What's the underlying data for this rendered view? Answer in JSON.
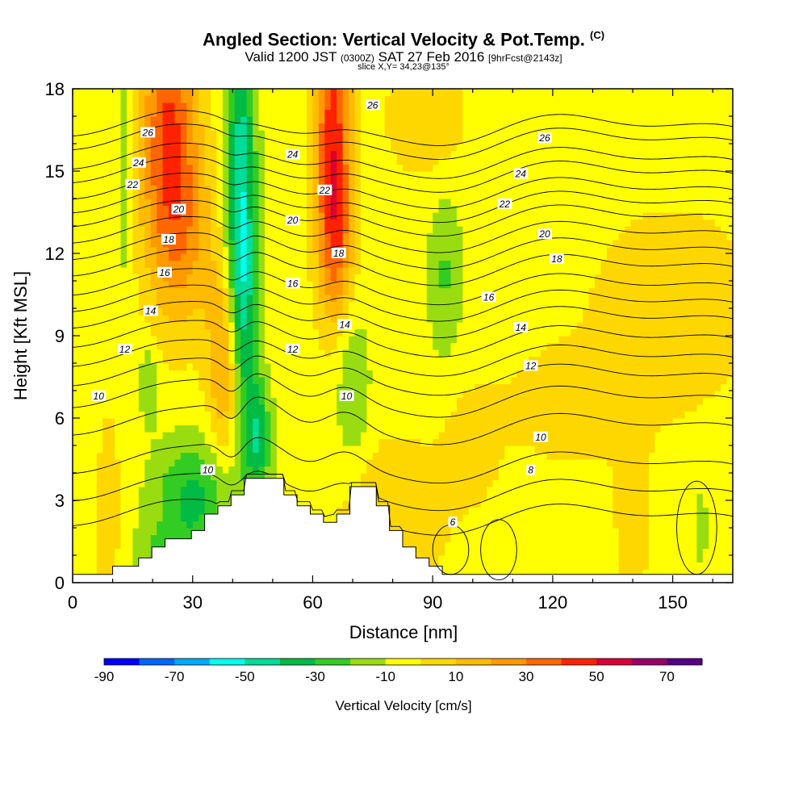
{
  "title": {
    "main": "Angled Section: Vertical Velocity & Pot.Temp.",
    "tag": "(C)",
    "line2_a": "Valid 1200 JST",
    "line2_b": "(0300Z)",
    "line2_c": "SAT 27 Feb 2016",
    "line2_d": "[9hrFcst@2143z]",
    "line3": "slice X,Y= 34,23@135°"
  },
  "chart_data": {
    "type": "heatmap",
    "xlabel": "Distance [nm]",
    "ylabel": "Height [Kft MSL]",
    "xlim": [
      0,
      165
    ],
    "ylim": [
      0,
      18
    ],
    "xticks": [
      0,
      30,
      60,
      90,
      120,
      150
    ],
    "yticks": [
      0,
      3,
      6,
      9,
      12,
      15,
      18
    ],
    "background_value": -5,
    "colorbar": {
      "label": "Vertical Velocity [cm/s]",
      "ticks": [
        -90,
        -70,
        -50,
        -30,
        -10,
        10,
        30,
        50,
        70
      ],
      "bounds": [
        -90,
        80
      ],
      "colors": [
        "#0000ff",
        "#0066ff",
        "#00aaff",
        "#00ffee",
        "#00dd99",
        "#00bb44",
        "#33cc22",
        "#99dd11",
        "#ffff00",
        "#ffd700",
        "#ffbb00",
        "#ff9900",
        "#ff6600",
        "#ff2200",
        "#dd0033",
        "#990066",
        "#550088"
      ]
    },
    "velocity_features": [
      {
        "x": 24,
        "y": 16.5,
        "sx": 5,
        "sy": 3.5,
        "value": 45
      },
      {
        "x": 28,
        "y": 12.5,
        "sx": 6,
        "sy": 2.5,
        "value": 20
      },
      {
        "x": 42,
        "y": 14,
        "sx": 2.6,
        "sy": 4.5,
        "value": -45
      },
      {
        "x": 43,
        "y": 9.5,
        "sx": 2.5,
        "sy": 2.5,
        "value": -18
      },
      {
        "x": 65,
        "y": 16.2,
        "sx": 3.2,
        "sy": 3.8,
        "value": 50
      },
      {
        "x": 66,
        "y": 12.5,
        "sx": 3,
        "sy": 2,
        "value": 20
      },
      {
        "x": 38,
        "y": 8,
        "sx": 3,
        "sy": 2.5,
        "value": 28
      },
      {
        "x": 30,
        "y": 3,
        "sx": 7,
        "sy": 1.6,
        "value": -28
      },
      {
        "x": 46,
        "y": 5.3,
        "sx": 2.5,
        "sy": 1.5,
        "value": -32
      },
      {
        "x": 19,
        "y": 7.3,
        "sx": 1.5,
        "sy": 1,
        "value": -16
      },
      {
        "x": 13,
        "y": 15,
        "sx": 1.4,
        "sy": 3,
        "value": -14
      },
      {
        "x": 70,
        "y": 7,
        "sx": 3,
        "sy": 2,
        "value": -16
      },
      {
        "x": 93,
        "y": 11.2,
        "sx": 3,
        "sy": 2,
        "value": -16
      },
      {
        "x": 157,
        "y": 2,
        "sx": 1.2,
        "sy": 1,
        "value": -12
      },
      {
        "x": 22,
        "y": 0.8,
        "sx": 5,
        "sy": 0.8,
        "value": -14
      },
      {
        "x": 9,
        "y": 2.5,
        "sx": 2,
        "sy": 2.5,
        "value": 14
      },
      {
        "x": 88,
        "y": 17,
        "sx": 7,
        "sy": 1.5,
        "value": 14
      },
      {
        "x": 80,
        "y": 2.5,
        "sx": 10,
        "sy": 2,
        "value": 14
      },
      {
        "x": 150,
        "y": 10,
        "sx": 14,
        "sy": 2.5,
        "value": 14
      },
      {
        "x": 125,
        "y": 6.5,
        "sx": 12,
        "sy": 1.5,
        "value": 12
      },
      {
        "x": 140,
        "y": 2.5,
        "sx": 3,
        "sy": 2,
        "value": 14
      },
      {
        "x": 100,
        "y": 5,
        "sx": 5,
        "sy": 1.5,
        "value": 10
      }
    ],
    "terrain": [
      {
        "x": 0,
        "h": 0.3
      },
      {
        "x": 10,
        "h": 0.3
      },
      {
        "x": 10,
        "h": 0.6
      },
      {
        "x": 16.5,
        "h": 0.6
      },
      {
        "x": 16.5,
        "h": 0.9
      },
      {
        "x": 19.8,
        "h": 0.9
      },
      {
        "x": 19.8,
        "h": 1.3
      },
      {
        "x": 23.1,
        "h": 1.3
      },
      {
        "x": 23.1,
        "h": 1.6
      },
      {
        "x": 29.7,
        "h": 1.6
      },
      {
        "x": 29.7,
        "h": 1.9
      },
      {
        "x": 33,
        "h": 1.9
      },
      {
        "x": 33,
        "h": 2.5
      },
      {
        "x": 36.3,
        "h": 2.5
      },
      {
        "x": 36.3,
        "h": 2.8
      },
      {
        "x": 39.6,
        "h": 2.8
      },
      {
        "x": 39.6,
        "h": 3.2
      },
      {
        "x": 42.9,
        "h": 3.2
      },
      {
        "x": 42.9,
        "h": 3.8
      },
      {
        "x": 52.8,
        "h": 3.8
      },
      {
        "x": 52.8,
        "h": 3.2
      },
      {
        "x": 56.1,
        "h": 3.2
      },
      {
        "x": 56.1,
        "h": 2.8
      },
      {
        "x": 59.4,
        "h": 2.8
      },
      {
        "x": 59.4,
        "h": 2.5
      },
      {
        "x": 62.7,
        "h": 2.5
      },
      {
        "x": 62.7,
        "h": 2.2
      },
      {
        "x": 66,
        "h": 2.2
      },
      {
        "x": 66,
        "h": 2.5
      },
      {
        "x": 69.3,
        "h": 2.5
      },
      {
        "x": 69.3,
        "h": 3.5
      },
      {
        "x": 75.9,
        "h": 3.5
      },
      {
        "x": 75.9,
        "h": 2.8
      },
      {
        "x": 79.2,
        "h": 2.8
      },
      {
        "x": 79.2,
        "h": 1.9
      },
      {
        "x": 82.5,
        "h": 1.9
      },
      {
        "x": 82.5,
        "h": 1.3
      },
      {
        "x": 85.8,
        "h": 1.3
      },
      {
        "x": 85.8,
        "h": 0.9
      },
      {
        "x": 89.1,
        "h": 0.9
      },
      {
        "x": 89.1,
        "h": 0.6
      },
      {
        "x": 92.4,
        "h": 0.6
      },
      {
        "x": 92.4,
        "h": 0.3
      },
      {
        "x": 165,
        "h": 0.3
      }
    ],
    "isentropes": [
      {
        "theta": 26,
        "h": 16.5,
        "bump": 0.3
      },
      {
        "theta": 25,
        "h": 16,
        "bump": 0.4
      },
      {
        "theta": 24,
        "h": 15.3,
        "bump": 0.5
      },
      {
        "theta": 23,
        "h": 14.8,
        "bump": 0.5
      },
      {
        "theta": 22,
        "h": 14.2,
        "bump": 0.6
      },
      {
        "theta": 21,
        "h": 13.7,
        "bump": 0.6
      },
      {
        "theta": 20,
        "h": 13.2,
        "bump": 0.7
      },
      {
        "theta": 19,
        "h": 12.6,
        "bump": 0.8
      },
      {
        "theta": 18,
        "h": 12,
        "bump": 0.9
      },
      {
        "theta": 17,
        "h": 11.4,
        "bump": 0.9
      },
      {
        "theta": 16,
        "h": 10.7,
        "bump": 0.9
      },
      {
        "theta": 15,
        "h": 10.1,
        "bump": 0.9
      },
      {
        "theta": 14,
        "h": 9.5,
        "bump": 0.9
      },
      {
        "theta": 13,
        "h": 8.8,
        "bump": 1.0
      },
      {
        "theta": 12,
        "h": 8.1,
        "bump": 1.0
      },
      {
        "theta": 11,
        "h": 7.4,
        "bump": 1.2
      },
      {
        "theta": 10,
        "h": 6.6,
        "bump": 1.4
      },
      {
        "theta": 9,
        "h": 5.6,
        "bump": 1.6
      },
      {
        "theta": 8,
        "h": 4.2,
        "bump": 1.5
      },
      {
        "theta": 7,
        "h": 3.2,
        "bump": 1.2
      },
      {
        "theta": 6,
        "h": 2.3,
        "bump": 0.8
      }
    ],
    "isentrope_labels": [
      {
        "text": "26",
        "x": 18.8,
        "y": 16.4
      },
      {
        "text": "26",
        "x": 75,
        "y": 17.4
      },
      {
        "text": "26",
        "x": 118,
        "y": 16.2
      },
      {
        "text": "24",
        "x": 16.5,
        "y": 15.3
      },
      {
        "text": "24",
        "x": 55,
        "y": 15.6
      },
      {
        "text": "24",
        "x": 112,
        "y": 14.9
      },
      {
        "text": "22",
        "x": 15,
        "y": 14.5
      },
      {
        "text": "22",
        "x": 63,
        "y": 14.3
      },
      {
        "text": "22",
        "x": 108,
        "y": 13.8
      },
      {
        "text": "20",
        "x": 26.5,
        "y": 13.6
      },
      {
        "text": "20",
        "x": 55,
        "y": 13.2
      },
      {
        "text": "20",
        "x": 118,
        "y": 12.7
      },
      {
        "text": "18",
        "x": 24,
        "y": 12.5
      },
      {
        "text": "18",
        "x": 66.5,
        "y": 12
      },
      {
        "text": "18",
        "x": 121,
        "y": 11.8
      },
      {
        "text": "16",
        "x": 23,
        "y": 11.3
      },
      {
        "text": "16",
        "x": 55,
        "y": 10.9
      },
      {
        "text": "16",
        "x": 104,
        "y": 10.4
      },
      {
        "text": "14",
        "x": 19.5,
        "y": 9.9
      },
      {
        "text": "14",
        "x": 68,
        "y": 9.4
      },
      {
        "text": "14",
        "x": 112,
        "y": 9.3
      },
      {
        "text": "12",
        "x": 13,
        "y": 8.5
      },
      {
        "text": "12",
        "x": 55,
        "y": 8.5
      },
      {
        "text": "12",
        "x": 114.5,
        "y": 7.9
      },
      {
        "text": "10",
        "x": 6.5,
        "y": 6.8
      },
      {
        "text": "10",
        "x": 68.5,
        "y": 6.8
      },
      {
        "text": "10",
        "x": 117,
        "y": 5.3
      },
      {
        "text": "10",
        "x": 33.8,
        "y": 4.1
      },
      {
        "text": "8",
        "x": 114.5,
        "y": 4.1
      },
      {
        "text": "6",
        "x": 95,
        "y": 2.2
      }
    ]
  }
}
